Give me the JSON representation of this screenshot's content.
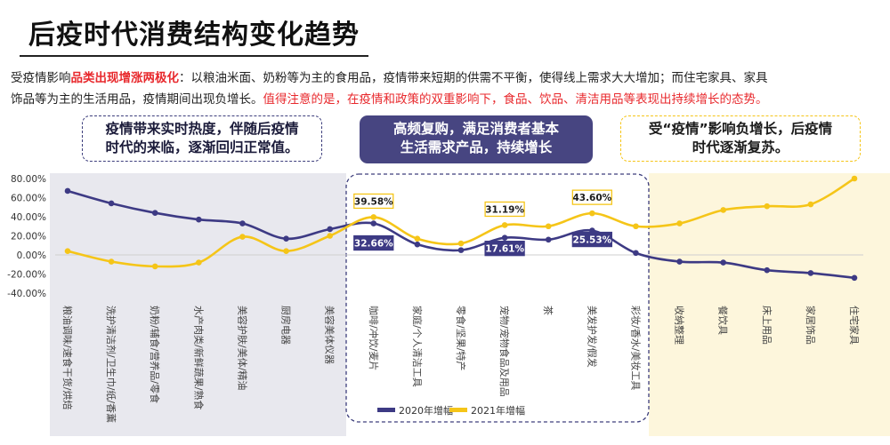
{
  "title": "后疫时代消费结构变化趋势",
  "intro": {
    "p1_prefix": "受疫情影响",
    "p1_highlight": "品类出现增涨两极化",
    "p1_rest": "：以粮油米面、奶粉等为主的食用品，疫情带来短期的供需不平衡，使得线上需求大大增加；而住宅家具、家具",
    "p2_rest": "饰品等为主的生活用品，疫情期间出现负增长。",
    "p2_red": "值得注意的是，在疫情和政策的双重影响下，食品、饮品、清洁用品等表现出持续增长的态势。"
  },
  "callouts": {
    "left": [
      "疫情带来实时热度，伴随后疫情",
      "时代的来临，逐渐回归正常值。"
    ],
    "middle": [
      "高频复购，满足消费者基本",
      "生活需求产品，持续增长"
    ],
    "right": [
      "受“疫情”影响负增长，后疫情",
      "时代逐渐复苏。"
    ]
  },
  "colors": {
    "series_2020": "#3d3a84",
    "series_2021": "#f5c518",
    "left_zone": "#e8e8ee",
    "right_zone": "#fdf6dc",
    "accent_red": "#e8292d"
  },
  "chart_data": {
    "type": "line",
    "categories": [
      "粮油调味/速食干货/烘焙",
      "洗护清洁剂/卫生巾/纸/香薰",
      "奶粉/辅食/营养品/零食",
      "水产肉类/新鲜蔬果/熟食",
      "美容护肤/美体/精油",
      "厨房电器",
      "美容美体仪器",
      "咖啡/冲饮/麦片",
      "家庭/个人清洁工具",
      "零食/坚果/特产",
      "宠物/宠物食品及用品",
      "茶",
      "美发护发/假发",
      "彩妆/香水/美妆工具",
      "收纳整理",
      "餐饮具",
      "床上用品",
      "家居饰品",
      "住宅家具"
    ],
    "series": [
      {
        "name": "2020年增幅",
        "values": [
          67,
          54,
          44,
          37,
          33,
          17,
          27,
          33,
          11,
          5,
          18,
          16,
          25.53,
          2,
          -7,
          -8,
          -16,
          -19,
          -24
        ]
      },
      {
        "name": "2021年增幅",
        "values": [
          4,
          -7,
          -12,
          -8,
          19,
          4,
          20,
          39.58,
          17,
          12,
          31.19,
          30,
          43.6,
          30,
          33,
          47,
          51,
          53,
          80
        ]
      }
    ],
    "data_labels": [
      {
        "series": 1,
        "index": 7,
        "text": "39.58%"
      },
      {
        "series": 0,
        "index": 7,
        "text": "32.66%"
      },
      {
        "series": 1,
        "index": 10,
        "text": "31.19%"
      },
      {
        "series": 0,
        "index": 10,
        "text": "17.61%"
      },
      {
        "series": 1,
        "index": 12,
        "text": "43.60%"
      },
      {
        "series": 0,
        "index": 12,
        "text": "25.53%"
      }
    ],
    "ylim": [
      -40,
      80
    ],
    "yticks": [
      "80.00%",
      "60.00%",
      "40.00%",
      "20.00%",
      "0.00%",
      "-20.00%",
      "-40.00%"
    ],
    "legend_position": "bottom"
  }
}
